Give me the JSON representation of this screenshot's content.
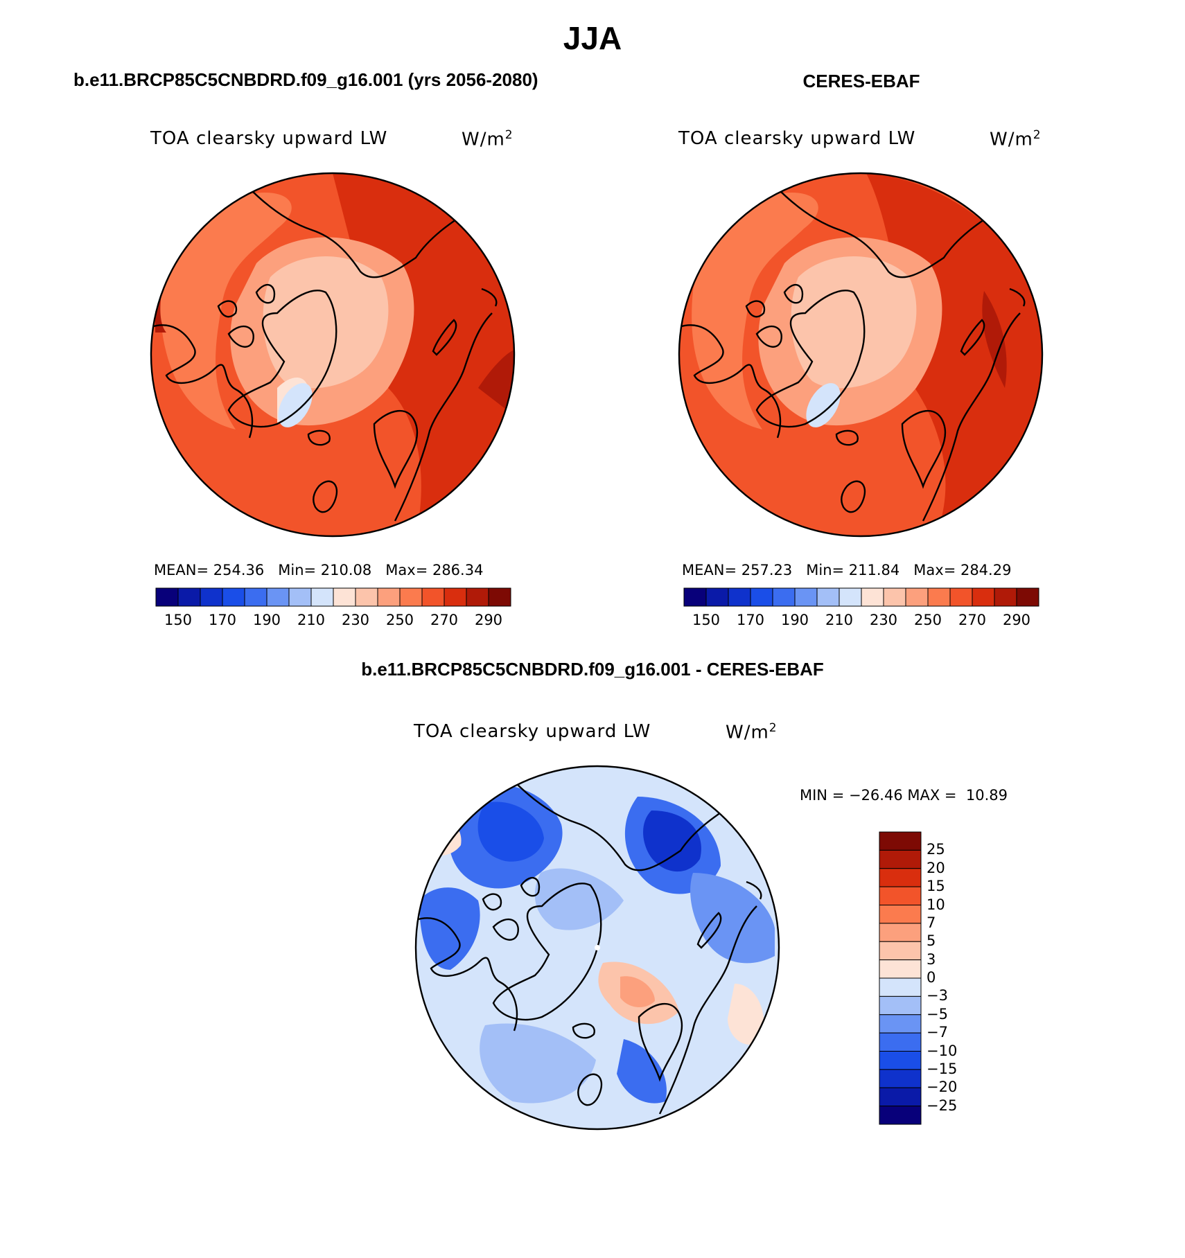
{
  "figure": {
    "title": "JJA",
    "panels": [
      {
        "case_title": "b.e11.BRCP85C5CNBDRD.f09_g16.001 (yrs 2056-2080)",
        "variable": "TOA clearsky upward LW",
        "units": "W/m",
        "units_exp": "2",
        "stats_text": "MEAN= 254.36   Min= 210.08   Max= 286.34"
      },
      {
        "case_title": "CERES-EBAF",
        "variable": "TOA clearsky upward LW",
        "units": "W/m",
        "units_exp": "2",
        "stats_text": "MEAN= 257.23   Min= 211.84   Max= 284.29"
      },
      {
        "case_title": "b.e11.BRCP85C5CNBDRD.f09_g16.001 - CERES-EBAF",
        "variable": "TOA clearsky upward LW",
        "units": "W/m",
        "units_exp": "2",
        "stats_text": "MIN = −26.46 MAX =  10.89"
      }
    ]
  },
  "chart_data": [
    {
      "type": "heatmap",
      "title": "b.e11.BRCP85C5CNBDRD.f09_g16.001 (yrs 2056-2080)",
      "projection": "polar stereographic (north pole)",
      "variable": "TOA clearsky upward LW",
      "units": "W/m^2",
      "mean": 254.36,
      "min": 210.08,
      "max": 286.34,
      "colorbar_ticks": [
        "150",
        "170",
        "190",
        "210",
        "230",
        "250",
        "270",
        "290"
      ],
      "colorbar_levels": [
        140,
        150,
        160,
        170,
        180,
        190,
        200,
        210,
        220,
        230,
        240,
        250,
        260,
        270,
        280,
        290,
        300
      ],
      "colorbar_colors": [
        "#08007a",
        "#0a1aa8",
        "#0f32cc",
        "#1a4ee8",
        "#3b6df0",
        "#6a94f4",
        "#a3bff7",
        "#d4e4fb",
        "#fde3d6",
        "#fcc4ab",
        "#fca07d",
        "#fb7b4e",
        "#f2542a",
        "#d92e0e",
        "#b01a08",
        "#7d0a04"
      ]
    },
    {
      "type": "heatmap",
      "title": "CERES-EBAF",
      "projection": "polar stereographic (north pole)",
      "variable": "TOA clearsky upward LW",
      "units": "W/m^2",
      "mean": 257.23,
      "min": 211.84,
      "max": 284.29,
      "colorbar_ticks": [
        "150",
        "170",
        "190",
        "210",
        "230",
        "250",
        "270",
        "290"
      ],
      "colorbar_levels": [
        140,
        150,
        160,
        170,
        180,
        190,
        200,
        210,
        220,
        230,
        240,
        250,
        260,
        270,
        280,
        290,
        300
      ],
      "colorbar_colors": [
        "#08007a",
        "#0a1aa8",
        "#0f32cc",
        "#1a4ee8",
        "#3b6df0",
        "#6a94f4",
        "#a3bff7",
        "#d4e4fb",
        "#fde3d6",
        "#fcc4ab",
        "#fca07d",
        "#fb7b4e",
        "#f2542a",
        "#d92e0e",
        "#b01a08",
        "#7d0a04"
      ]
    },
    {
      "type": "heatmap",
      "title": "b.e11.BRCP85C5CNBDRD.f09_g16.001 - CERES-EBAF",
      "projection": "polar stereographic (north pole)",
      "variable": "TOA clearsky upward LW",
      "units": "W/m^2",
      "min": -26.46,
      "max": 10.89,
      "colorbar_ticks": [
        "25",
        "20",
        "15",
        "10",
        "7",
        "5",
        "3",
        "0",
        "−3",
        "−5",
        "−7",
        "−10",
        "−15",
        "−20",
        "−25"
      ],
      "colorbar_colors": [
        "#7d0a04",
        "#b01a08",
        "#d92e0e",
        "#f2542a",
        "#fb7b4e",
        "#fca07d",
        "#fcc4ab",
        "#fde3d6",
        "#d4e4fb",
        "#a3bff7",
        "#6a94f4",
        "#3b6df0",
        "#1a4ee8",
        "#0f32cc",
        "#0a1aa8",
        "#08007a"
      ]
    }
  ]
}
